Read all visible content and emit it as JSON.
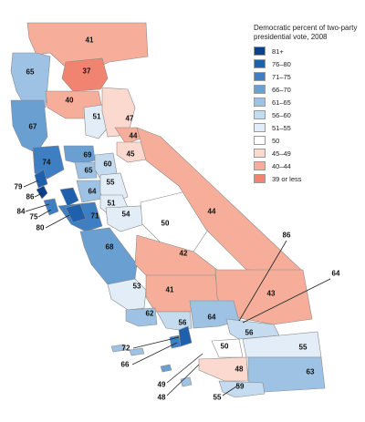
{
  "legend": {
    "title": "Democratic percent of two-party\npresidential vote, 2008",
    "items": [
      {
        "label": "81+",
        "color": "#0d3f8c"
      },
      {
        "label": "76–80",
        "color": "#1f60ad"
      },
      {
        "label": "71–75",
        "color": "#3d7fc2"
      },
      {
        "label": "66–70",
        "color": "#6a9fd2"
      },
      {
        "label": "61–65",
        "color": "#9dc2e4"
      },
      {
        "label": "56–60",
        "color": "#c4dbf0"
      },
      {
        "label": "51–55",
        "color": "#e2edf8"
      },
      {
        "label": "50",
        "color": "#ffffff"
      },
      {
        "label": "45–49",
        "color": "#fbd9cf"
      },
      {
        "label": "40–44",
        "color": "#f6ae9a"
      },
      {
        "label": "39 or less",
        "color": "#f08470"
      }
    ]
  },
  "regions": [
    {
      "value": "41",
      "color": "#f6ae9a"
    },
    {
      "value": "65",
      "color": "#9dc2e4"
    },
    {
      "value": "37",
      "color": "#f08470"
    },
    {
      "value": "40",
      "color": "#f6ae9a"
    },
    {
      "value": "51",
      "color": "#e2edf8"
    },
    {
      "value": "47",
      "color": "#fbd9cf"
    },
    {
      "value": "67",
      "color": "#6a9fd2"
    },
    {
      "value": "44",
      "color": "#f6ae9a"
    },
    {
      "value": "45",
      "color": "#fbd9cf"
    },
    {
      "value": "74",
      "color": "#3d7fc2"
    },
    {
      "value": "69",
      "color": "#6a9fd2"
    },
    {
      "value": "65",
      "color": "#9dc2e4"
    },
    {
      "value": "60",
      "color": "#c4dbf0"
    },
    {
      "value": "64",
      "color": "#9dc2e4"
    },
    {
      "value": "55",
      "color": "#e2edf8"
    },
    {
      "value": "51",
      "color": "#e2edf8"
    },
    {
      "value": "71",
      "color": "#3d7fc2"
    },
    {
      "value": "54",
      "color": "#e2edf8"
    },
    {
      "value": "50",
      "color": "#ffffff"
    },
    {
      "value": "44",
      "color": "#f6ae9a"
    },
    {
      "value": "68",
      "color": "#6a9fd2"
    },
    {
      "value": "42",
      "color": "#f6ae9a"
    },
    {
      "value": "53",
      "color": "#e2edf8"
    },
    {
      "value": "41",
      "color": "#f6ae9a"
    },
    {
      "value": "43",
      "color": "#f6ae9a"
    },
    {
      "value": "62",
      "color": "#9dc2e4"
    },
    {
      "value": "56",
      "color": "#c4dbf0"
    },
    {
      "value": "64",
      "color": "#9dc2e4"
    },
    {
      "value": "56",
      "color": "#c4dbf0"
    },
    {
      "value": "50",
      "color": "#ffffff"
    },
    {
      "value": "55",
      "color": "#e2edf8"
    },
    {
      "value": "48",
      "color": "#fbd9cf"
    },
    {
      "value": "63",
      "color": "#9dc2e4"
    },
    {
      "value": "59",
      "color": "#c4dbf0"
    }
  ],
  "annotations": [
    {
      "value": "79"
    },
    {
      "value": "86"
    },
    {
      "value": "84"
    },
    {
      "value": "75"
    },
    {
      "value": "80"
    },
    {
      "value": "86"
    },
    {
      "value": "64"
    },
    {
      "value": "72"
    },
    {
      "value": "66"
    },
    {
      "value": "49"
    },
    {
      "value": "48"
    },
    {
      "value": "55"
    }
  ]
}
